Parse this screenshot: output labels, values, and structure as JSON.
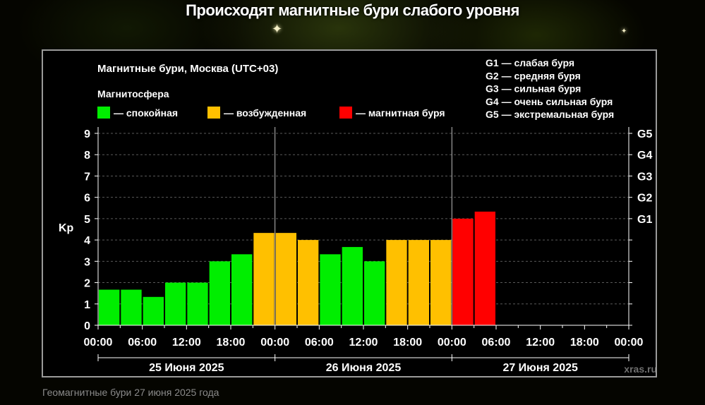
{
  "headline": "Происходят магнитные бури слабого уровня",
  "caption": "Геомагнитные бури 27 июня 2025 года",
  "chart_data": {
    "type": "bar",
    "title": "Магнитные бури, Москва (UTC+03)",
    "legend_title": "Магнитосфера",
    "legend": [
      {
        "label": "— спокойная",
        "color": "#00ee00"
      },
      {
        "label": "— возбужденная",
        "color": "#ffc000"
      },
      {
        "label": "— магнитная буря",
        "color": "#ff0000"
      }
    ],
    "storm_scale": [
      "G1 — слабая буря",
      "G2 — средняя буря",
      "G3 — сильная буря",
      "G4 — очень сильная буря",
      "G5 — экстремальная буря"
    ],
    "ylabel": "Kp",
    "ylim": [
      0,
      9
    ],
    "yticks": [
      "0",
      "1",
      "2",
      "3",
      "4",
      "5",
      "6",
      "7",
      "8",
      "9"
    ],
    "right_ticks": [
      {
        "value": 5,
        "label": "G1"
      },
      {
        "value": 6,
        "label": "G2"
      },
      {
        "value": 7,
        "label": "G3"
      },
      {
        "value": 8,
        "label": "G4"
      },
      {
        "value": 9,
        "label": "G5"
      }
    ],
    "xticks": [
      "00:00",
      "06:00",
      "12:00",
      "18:00",
      "00:00",
      "06:00",
      "12:00",
      "18:00",
      "00:00",
      "06:00",
      "12:00",
      "18:00",
      "00:00"
    ],
    "days": [
      "25 Июня 2025",
      "26 Июня 2025",
      "27 Июня 2025"
    ],
    "values": [
      1.67,
      1.67,
      1.33,
      2.0,
      2.0,
      3.0,
      3.33,
      4.33,
      4.33,
      4.0,
      3.33,
      3.67,
      3.0,
      4.0,
      4.0,
      4.0,
      5.0,
      5.33
    ],
    "levels": [
      "quiet",
      "quiet",
      "quiet",
      "quiet",
      "quiet",
      "quiet",
      "quiet",
      "active",
      "active",
      "active",
      "quiet",
      "quiet",
      "quiet",
      "active",
      "active",
      "active",
      "storm",
      "storm"
    ],
    "level_colors": {
      "quiet": "#00ee00",
      "active": "#ffc000",
      "storm": "#ff0000"
    },
    "slots_total": 24,
    "grid": true,
    "watermark": "xras.ru"
  }
}
